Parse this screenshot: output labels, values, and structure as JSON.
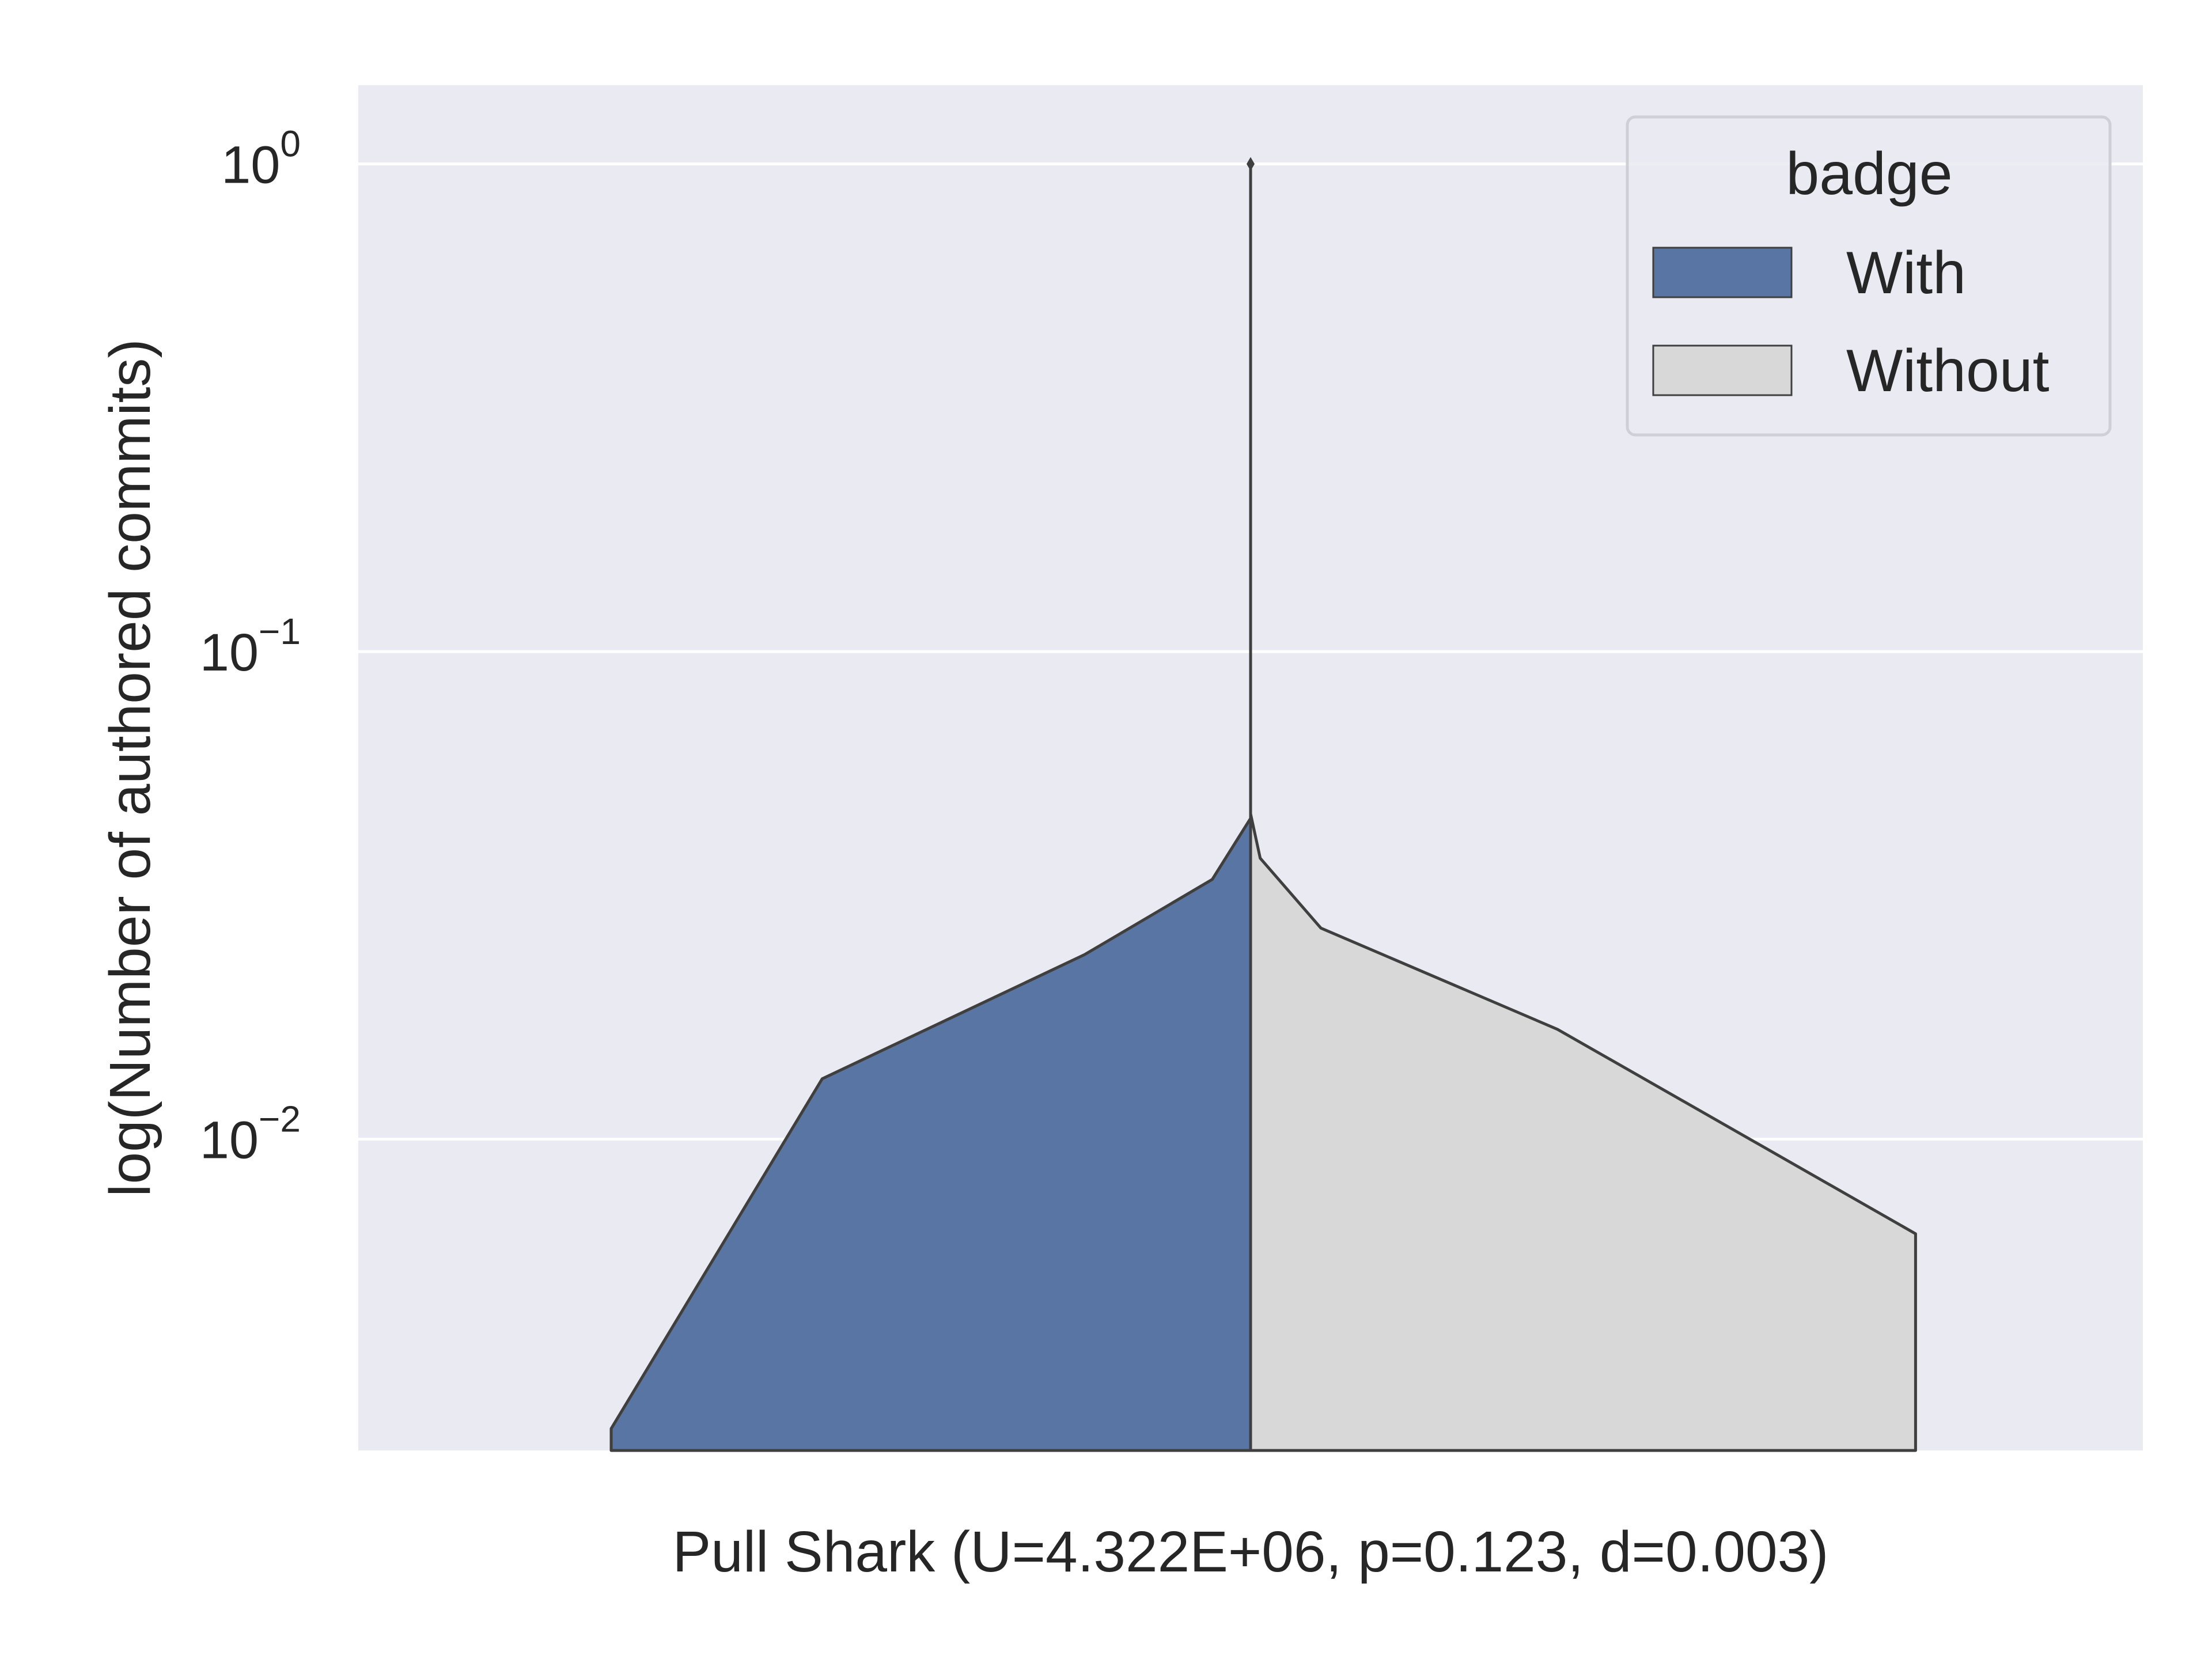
{
  "chart_data": {
    "type": "violin",
    "split": true,
    "xlabel": "Pull Shark (U=4.322E+06, p=0.123, d=0.003)",
    "ylabel": "log(Number of authored commits)",
    "yscale": "log",
    "ylim": [
      0.0023,
      1.45
    ],
    "yticks": [
      {
        "value": 1,
        "base": "10",
        "exp": "0"
      },
      {
        "value": 0.1,
        "base": "10",
        "exp": "−1"
      },
      {
        "value": 0.01,
        "base": "10",
        "exp": "−2"
      }
    ],
    "grid": true,
    "legend": {
      "title": "badge",
      "placement": "top-right",
      "entries": [
        {
          "label": "With",
          "color": "#5975a4"
        },
        {
          "label": "Without",
          "color": "#d8d8d8"
        }
      ]
    },
    "series": [
      {
        "name": "With",
        "side": "left",
        "color": "#5975a4",
        "profile": [
          {
            "y": 0.0023,
            "density": 1.0
          },
          {
            "y": 0.00255,
            "density": 1.0
          },
          {
            "y": 0.0133,
            "density": 0.67
          },
          {
            "y": 0.0239,
            "density": 0.26
          },
          {
            "y": 0.0341,
            "density": 0.06
          },
          {
            "y": 0.0455,
            "density": 0.0
          }
        ]
      },
      {
        "name": "Without",
        "side": "right",
        "color": "#d8d8d8",
        "profile": [
          {
            "y": 0.0023,
            "density": 1.04
          },
          {
            "y": 0.0064,
            "density": 1.04
          },
          {
            "y": 0.0168,
            "density": 0.48
          },
          {
            "y": 0.0271,
            "density": 0.11
          },
          {
            "y": 0.0377,
            "density": 0.015
          },
          {
            "y": 0.0465,
            "density": 0.0
          }
        ]
      }
    ],
    "center_line": {
      "y_min": 0.0023,
      "y_max": 1
    }
  },
  "colors": {
    "plot_background": "#eaeaf2",
    "grid": "#ffffff",
    "edge": "#3f3f3f",
    "text": "#262626"
  }
}
